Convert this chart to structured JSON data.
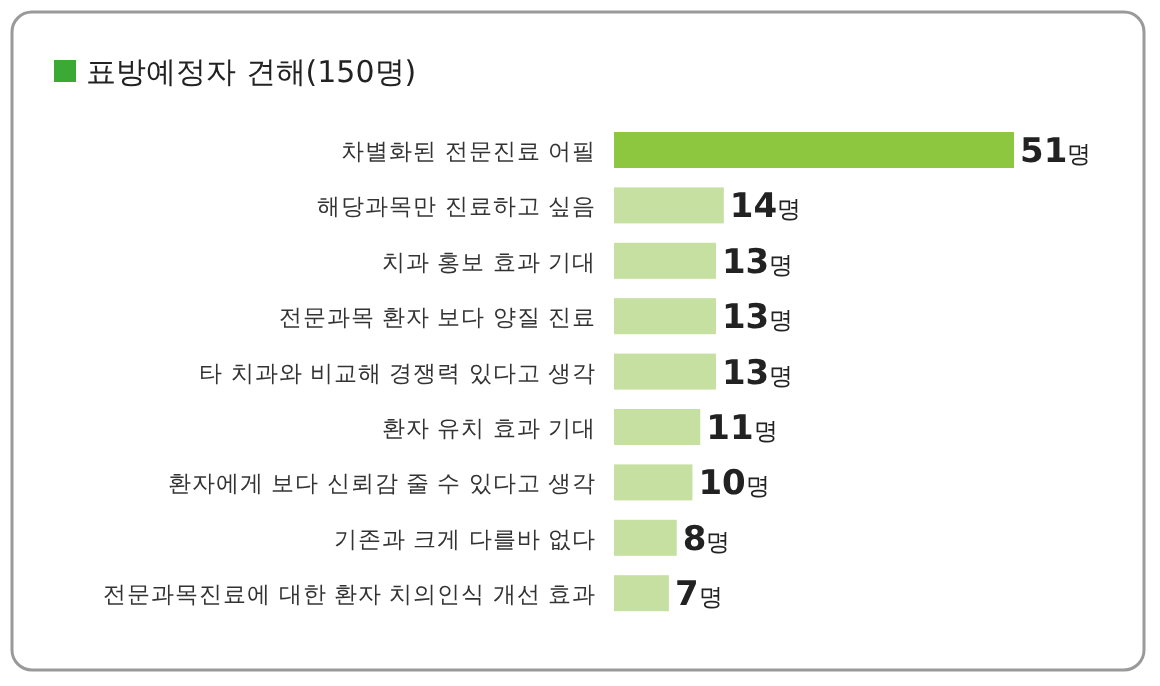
{
  "chart_data": {
    "type": "bar",
    "orientation": "horizontal",
    "title": "표방예정자 견해(150명)",
    "categories": [
      "차별화된 전문진료 어필",
      "해당과목만 진료하고 싶음",
      "치과 홍보 효과 기대",
      "전문과목 환자 보다 양질 진료",
      "타 치과와 비교해 경쟁력 있다고 생각",
      "환자 유치 효과 기대",
      "환자에게 보다 신뢰감 줄 수 있다고 생각",
      "기존과 크게 다를바 없다",
      "전문과목진료에 대한 환자 치의인식 개선 효과"
    ],
    "values": [
      51,
      14,
      13,
      13,
      13,
      11,
      10,
      8,
      7
    ],
    "colors": [
      "#8dc63f",
      "#c5e0a0",
      "#c5e0a0",
      "#c5e0a0",
      "#c5e0a0",
      "#c5e0a0",
      "#c5e0a0",
      "#c5e0a0",
      "#c5e0a0"
    ],
    "value_labels": [
      "51명",
      "14명",
      "13명",
      "13명",
      "13명",
      "11명",
      "10명",
      "8명",
      "7명"
    ]
  }
}
